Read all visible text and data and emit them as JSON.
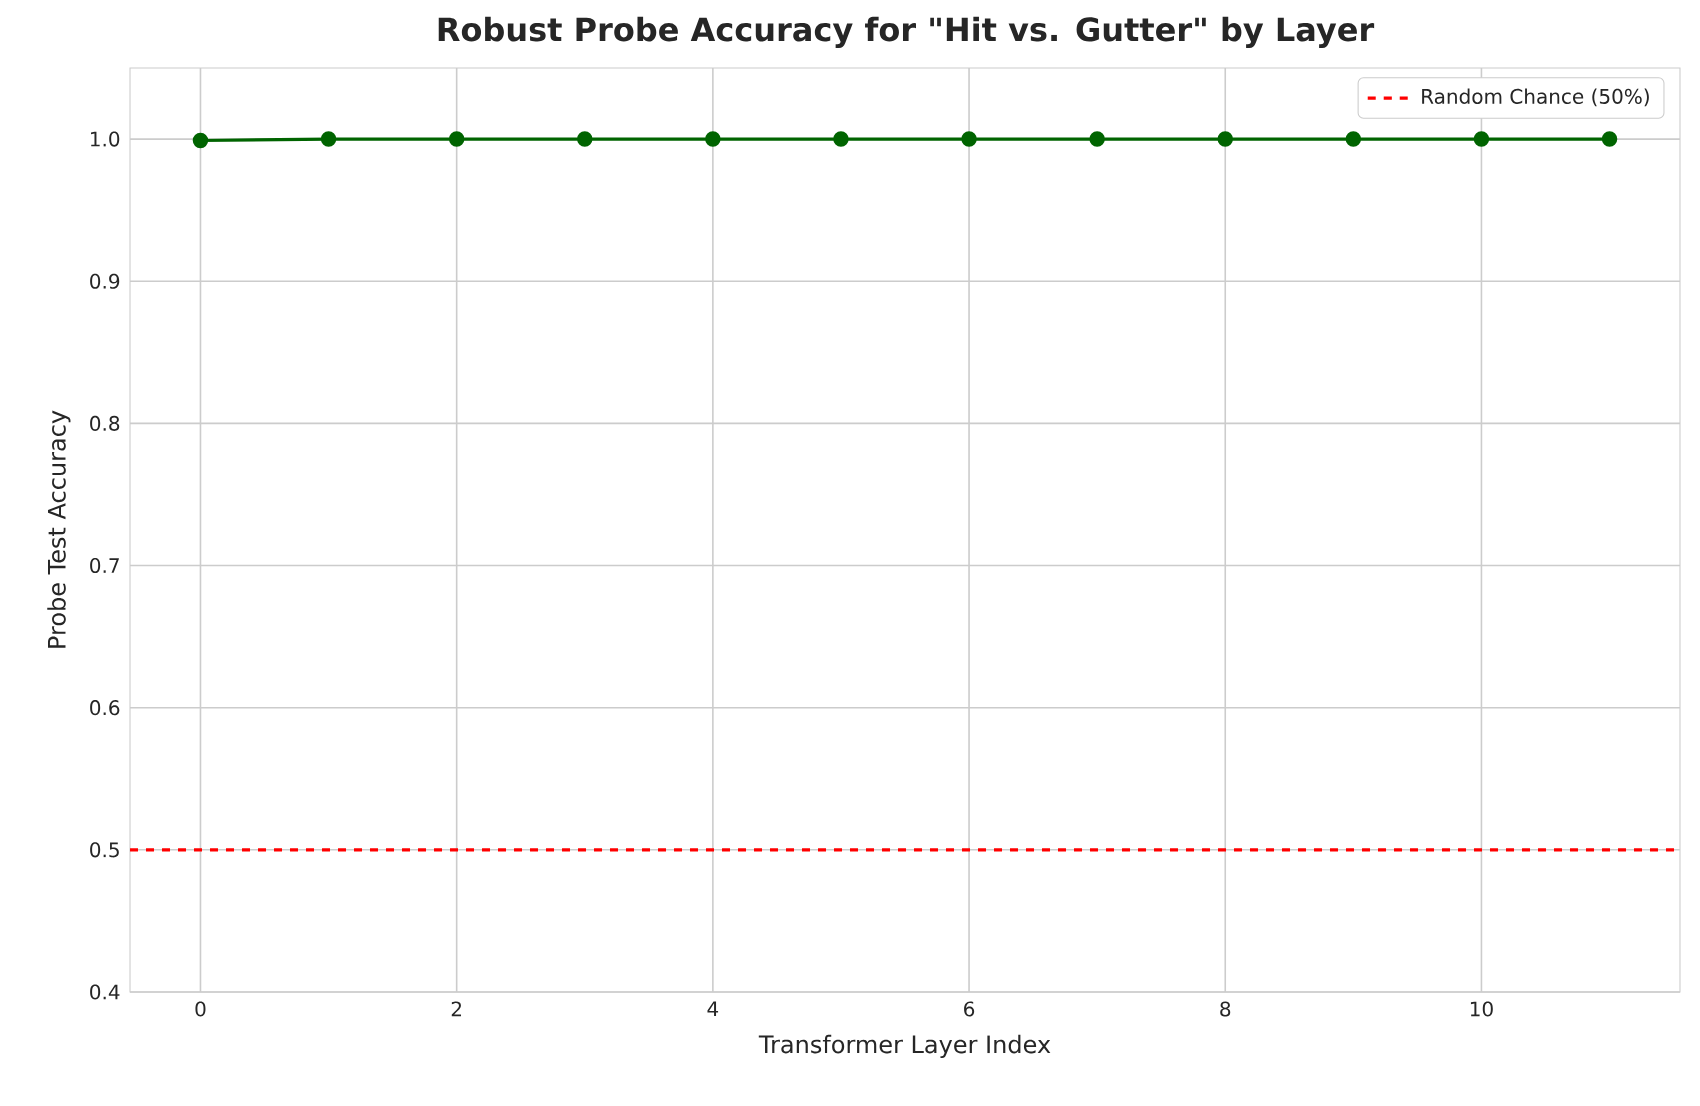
{
  "chart_data": {
    "type": "line",
    "title": "Robust Probe Accuracy for \"Hit vs. Gutter\" by Layer",
    "xlabel": "Transformer Layer Index",
    "ylabel": "Probe Test Accuracy",
    "x": [
      0,
      1,
      2,
      3,
      4,
      5,
      6,
      7,
      8,
      9,
      10,
      11
    ],
    "series": [
      {
        "color": "#006400",
        "values": [
          0.999,
          1.0,
          1.0,
          1.0,
          1.0,
          1.0,
          1.0,
          1.0,
          1.0,
          1.0,
          1.0,
          1.0
        ]
      }
    ],
    "xlim": [
      -0.55,
      11.55
    ],
    "xticks": [
      0,
      2,
      4,
      6,
      8,
      10
    ],
    "ylim": [
      0.4,
      1.05
    ],
    "yticks": [
      0.4,
      0.5,
      0.6,
      0.7,
      0.8,
      0.9,
      {
        "value": 1.0,
        "label": "1.0"
      }
    ],
    "ref_lines": [
      {
        "axis": "y",
        "value": 0.5,
        "label": "Random Chance (50%)",
        "color": "#ff0000",
        "line_style": "dashed"
      }
    ],
    "grid": true,
    "legend": "top right",
    "marker": "circle",
    "line_style": "solid"
  }
}
